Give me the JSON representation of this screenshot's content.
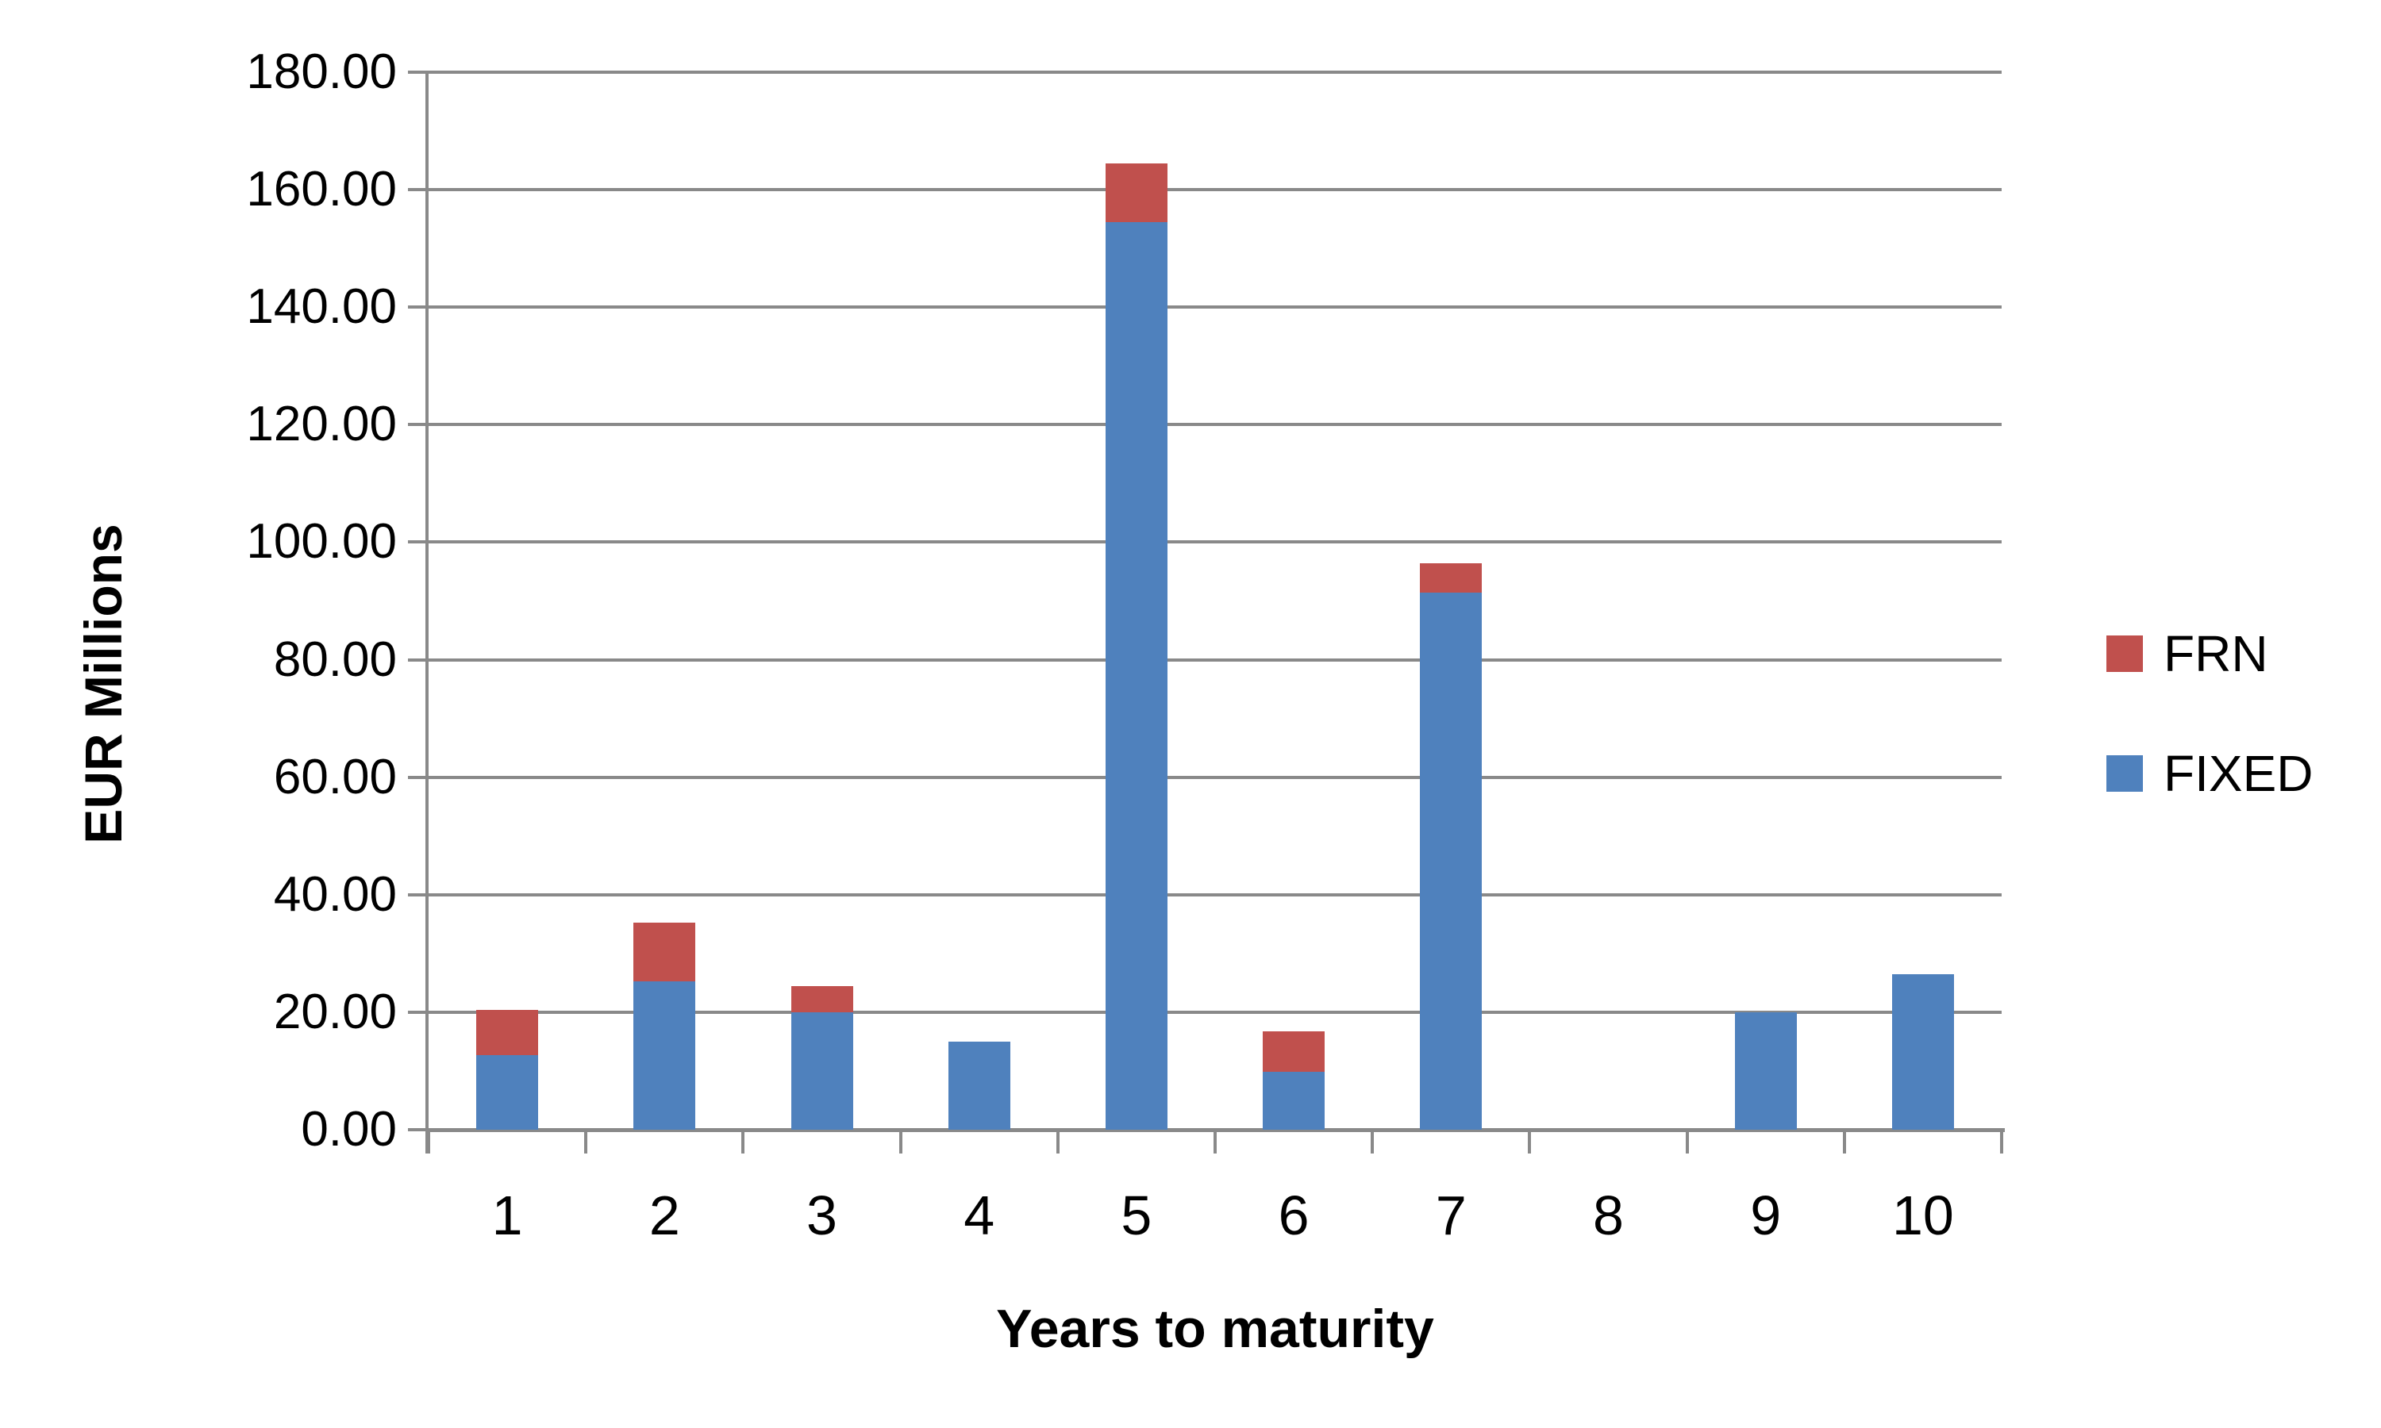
{
  "chart_data": {
    "type": "bar",
    "stacked": true,
    "title": "",
    "xlabel": "Years to maturity",
    "ylabel": "EUR Millions",
    "categories": [
      "1",
      "2",
      "3",
      "4",
      "5",
      "6",
      "7",
      "8",
      "9",
      "10"
    ],
    "series": [
      {
        "name": "FRN",
        "color": "#C0504D",
        "stack": 1,
        "values": [
          7.7,
          10.0,
          4.5,
          0,
          10.0,
          7.0,
          5.0,
          0,
          0,
          0
        ]
      },
      {
        "name": "FIXED",
        "color": "#4F81BD",
        "stack": 0,
        "values": [
          12.7,
          25.2,
          20.0,
          15.0,
          154.5,
          9.8,
          91.4,
          0,
          20.0,
          26.5
        ]
      }
    ],
    "ylim": [
      0,
      180
    ],
    "ytick_step": 20,
    "ytick_labels": [
      "0.00",
      "20.00",
      "40.00",
      "60.00",
      "80.00",
      "100.00",
      "120.00",
      "140.00",
      "160.00",
      "180.00"
    ],
    "grid": true,
    "gridline_color": "#898989",
    "axis_color": "#898989",
    "background": "#FFFFFF",
    "legend_position": "right",
    "legend_entries": [
      "FRN",
      "FIXED"
    ]
  }
}
